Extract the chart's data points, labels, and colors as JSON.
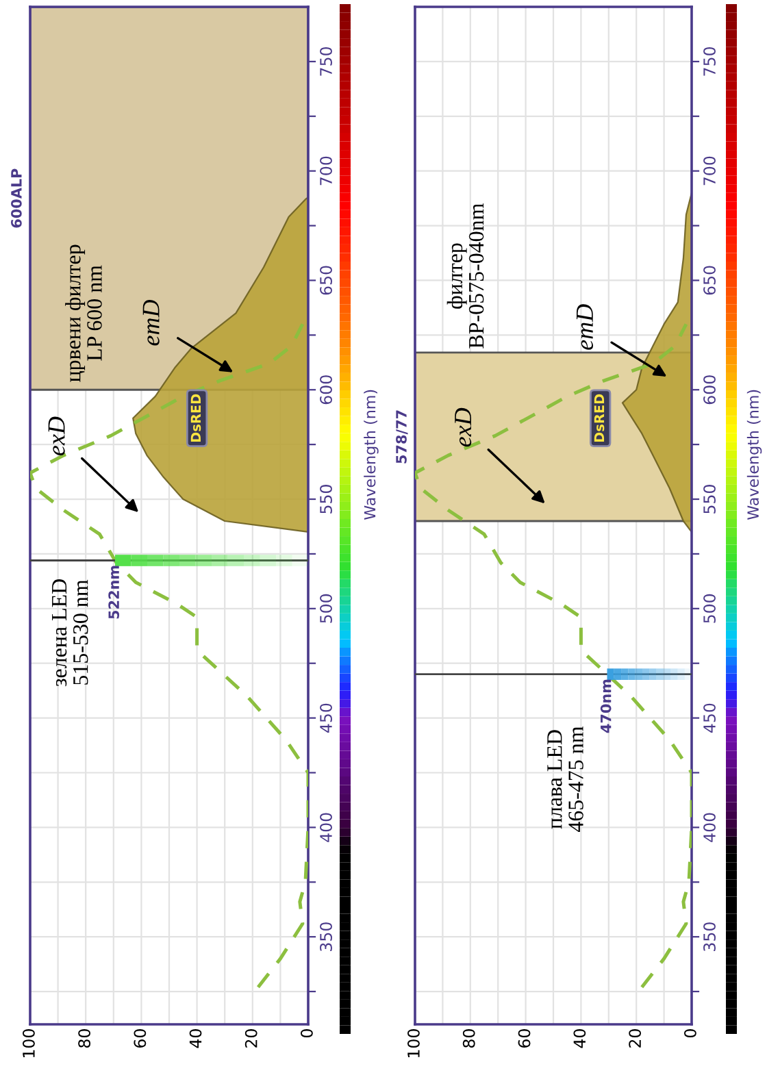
{
  "chart_data": [
    {
      "type": "line",
      "title": "600ALP",
      "ylabel": "Wavelength (nm)",
      "xlim": [
        100,
        0
      ],
      "ylim": [
        310,
        775
      ],
      "yticks": [
        {
          "value": 325,
          "label": null
        },
        350,
        {
          "value": 375,
          "label": null
        },
        400,
        {
          "value": 425,
          "label": null
        },
        450,
        {
          "value": 475,
          "label": null
        },
        500,
        {
          "value": 525,
          "label": null
        },
        550,
        {
          "value": 575,
          "label": null
        },
        600,
        {
          "value": 625,
          "label": null
        },
        650,
        {
          "value": 675,
          "label": null
        },
        700,
        {
          "value": 725,
          "label": null
        },
        750
      ],
      "xticks": [
        100,
        {
          "value": 90,
          "label": null
        },
        80,
        {
          "value": 70,
          "label": null
        },
        60,
        {
          "value": 50,
          "label": null
        },
        40,
        {
          "value": 30,
          "label": null
        },
        20,
        {
          "value": 10,
          "label": null
        },
        0
      ],
      "grid": true,
      "marker": "none",
      "series": [
        {
          "type": "area",
          "color": "#b9a33a",
          "values": [
            535,
            540,
            550,
            560,
            570,
            580,
            587,
            597,
            610,
            619,
            635,
            656,
            679,
            687,
            688
          ],
          "x": [
            0,
            30,
            45,
            52,
            58,
            62,
            63,
            55,
            48,
            42,
            26,
            16,
            7,
            1,
            0
          ]
        },
        {
          "line_style": "dashed",
          "color": "#8cbf3f",
          "values": [
            327,
            340,
            356,
            366,
            375,
            400,
            425,
            440,
            460,
            481,
            496,
            502,
            512,
            521,
            534,
            545,
            555,
            562,
            570,
            579,
            590,
            597,
            604,
            612,
            620,
            630
          ],
          "x": [
            18,
            10,
            2,
            3,
            1,
            0,
            0,
            8,
            22,
            40,
            40,
            47,
            62,
            69,
            75,
            88,
            98,
            100,
            88,
            71,
            55,
            45,
            32,
            14,
            6,
            2
          ]
        }
      ],
      "bands": [
        {
          "axis": "y",
          "from": 600,
          "to": 775,
          "color": "#d9c9a3"
        }
      ],
      "ref_lines": [
        {
          "axis": "y",
          "value": 522,
          "label": "522nm",
          "color": "#444444"
        }
      ],
      "annotations": [
        "црвени филтер\nLP 600 nm",
        {
          "text": "emD",
          "x": 27,
          "y": 608
        },
        "exD",
        "DsRED",
        "зелена LED\n515-530 nm"
      ]
    },
    {
      "type": "line",
      "title": "578/77",
      "ylabel": "Wavelength (nm)",
      "xlim": [
        100,
        0
      ],
      "ylim": [
        310,
        775
      ],
      "yticks": [
        {
          "value": 325,
          "label": null
        },
        350,
        {
          "value": 375,
          "label": null
        },
        400,
        {
          "value": 425,
          "label": null
        },
        450,
        {
          "value": 475,
          "label": null
        },
        500,
        {
          "value": 525,
          "label": null
        },
        550,
        {
          "value": 575,
          "label": null
        },
        600,
        {
          "value": 625,
          "label": null
        },
        650,
        {
          "value": 675,
          "label": null
        },
        700,
        {
          "value": 725,
          "label": null
        },
        750
      ],
      "xticks": [
        100,
        {
          "value": 90,
          "label": null
        },
        80,
        {
          "value": 70,
          "label": null
        },
        60,
        {
          "value": 50,
          "label": null
        },
        40,
        {
          "value": 30,
          "label": null
        },
        20,
        {
          "value": 10,
          "label": null
        },
        0
      ],
      "grid": true,
      "marker": "none",
      "series": [
        {
          "type": "area",
          "color": "#b9a33a",
          "values": [
            535,
            540,
            555,
            570,
            580,
            588,
            594,
            600,
            610,
            620,
            630,
            640,
            660,
            680,
            690
          ],
          "x": [
            0,
            3,
            8,
            14,
            18,
            22,
            25,
            20,
            18,
            14,
            10,
            5,
            3,
            2,
            0
          ]
        },
        {
          "line_style": "dashed",
          "color": "#8cbf3f",
          "values": [
            327,
            340,
            356,
            366,
            375,
            400,
            425,
            440,
            460,
            481,
            496,
            502,
            512,
            521,
            534,
            545,
            555,
            562,
            570,
            579,
            590,
            597,
            604,
            612,
            620,
            630
          ],
          "x": [
            18,
            10,
            2,
            3,
            1,
            0,
            0,
            8,
            22,
            40,
            40,
            47,
            62,
            69,
            75,
            88,
            98,
            100,
            88,
            71,
            55,
            45,
            32,
            14,
            6,
            2
          ]
        }
      ],
      "bands": [
        {
          "axis": "y",
          "from": 540,
          "to": 617,
          "color": "#e3d3a2"
        }
      ],
      "ref_lines": [
        {
          "axis": "y",
          "value": 470,
          "label": "470nm",
          "color": "#444444"
        }
      ],
      "annotations": [
        "филтер\nBP-0575-040nm",
        "emD",
        "exD",
        "DsRED",
        "плава LED\n465-475 nm"
      ]
    }
  ]
}
